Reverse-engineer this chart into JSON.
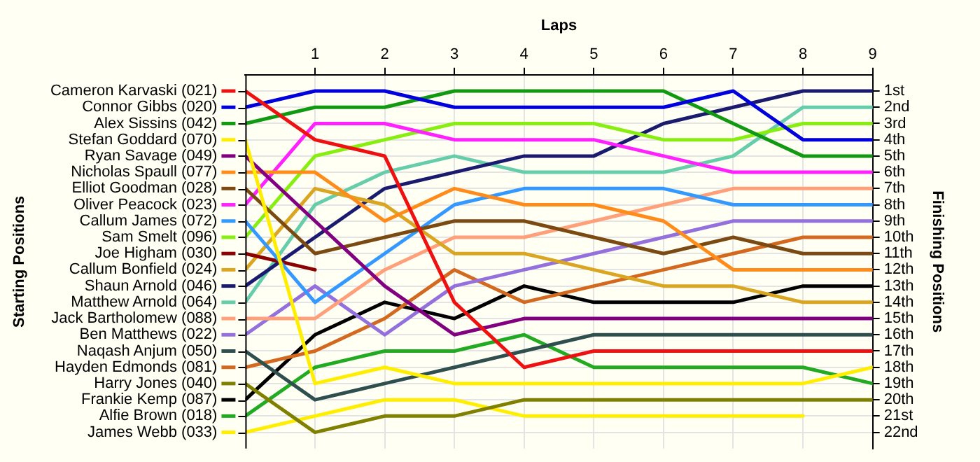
{
  "chart_data": {
    "type": "line",
    "xlabel": "Laps",
    "y2label": "Finishing Positions",
    "annotations": [
      "Starting Positions"
    ],
    "x": [
      0,
      1,
      2,
      3,
      4,
      5,
      6,
      7,
      8,
      9
    ],
    "xlim": [
      0,
      9
    ],
    "xticks": [
      1,
      2,
      3,
      4,
      5,
      6,
      7,
      8,
      9
    ],
    "y2lim": [
      23,
      0
    ],
    "y2ticks": [
      {
        "value": 1,
        "label": "1st"
      },
      {
        "value": 2,
        "label": "2nd"
      },
      {
        "value": 3,
        "label": "3rd"
      },
      {
        "value": 4,
        "label": "4th"
      },
      {
        "value": 5,
        "label": "5th"
      },
      {
        "value": 6,
        "label": "6th"
      },
      {
        "value": 7,
        "label": "7th"
      },
      {
        "value": 8,
        "label": "8th"
      },
      {
        "value": 9,
        "label": "9th"
      },
      {
        "value": 10,
        "label": "10th"
      },
      {
        "value": 11,
        "label": "11th"
      },
      {
        "value": 12,
        "label": "12th"
      },
      {
        "value": 13,
        "label": "13th"
      },
      {
        "value": 14,
        "label": "14th"
      },
      {
        "value": 15,
        "label": "15th"
      },
      {
        "value": 16,
        "label": "16th"
      },
      {
        "value": 17,
        "label": "17th"
      },
      {
        "value": 18,
        "label": "18th"
      },
      {
        "value": 19,
        "label": "19th"
      },
      {
        "value": 20,
        "label": "20th"
      },
      {
        "value": 21,
        "label": "21st"
      },
      {
        "value": 22,
        "label": "22nd"
      }
    ],
    "grid": true,
    "legend": "left",
    "marker": "none",
    "series": [
      {
        "name": "Cameron Karvaski (021)",
        "axis": "y2",
        "color": "#ee1111",
        "values": [
          1,
          4,
          5,
          14,
          18,
          17,
          17,
          17,
          17,
          17
        ]
      },
      {
        "name": "Connor Gibbs (020)",
        "axis": "y2",
        "color": "#0000dd",
        "values": [
          2,
          1,
          1,
          2,
          2,
          2,
          2,
          1,
          4,
          4
        ]
      },
      {
        "name": "Alex Sissins (042)",
        "axis": "y2",
        "color": "#119911",
        "values": [
          3,
          2,
          2,
          1,
          1,
          1,
          1,
          3,
          5,
          5
        ]
      },
      {
        "name": "Stefan Goddard (070)",
        "axis": "y2",
        "color": "#ffee00",
        "values": [
          4,
          19,
          18,
          19,
          19,
          19,
          19,
          19,
          19,
          18
        ]
      },
      {
        "name": "Ryan Savage (049)",
        "axis": "y2",
        "color": "#800080",
        "values": [
          5,
          9,
          13,
          16,
          15,
          15,
          15,
          15,
          15,
          15
        ]
      },
      {
        "name": "Nicholas Spaull (077)",
        "axis": "y2",
        "color": "#ff8c1a",
        "values": [
          6,
          6,
          9,
          7,
          8,
          8,
          9,
          12,
          12,
          12
        ]
      },
      {
        "name": "Elliot Goodman (028)",
        "axis": "y2",
        "color": "#7b4a12",
        "values": [
          7,
          11,
          10,
          9,
          9,
          10,
          11,
          10,
          11,
          11
        ]
      },
      {
        "name": "Oliver Peacock (023)",
        "axis": "y2",
        "color": "#ff22ff",
        "values": [
          8,
          3,
          3,
          4,
          4,
          4,
          5,
          6,
          6,
          6
        ]
      },
      {
        "name": "Callum James (072)",
        "axis": "y2",
        "color": "#3399ff",
        "values": [
          9,
          14,
          11,
          8,
          7,
          7,
          7,
          8,
          8,
          8
        ]
      },
      {
        "name": "Sam Smelt (096)",
        "axis": "y2",
        "color": "#88ee11",
        "values": [
          10,
          5,
          4,
          3,
          3,
          3,
          4,
          4,
          3,
          3
        ]
      },
      {
        "name": "Joe Higham (030)",
        "axis": "y2",
        "color": "#8b0000",
        "values": [
          11,
          12,
          null,
          null,
          null,
          null,
          null,
          null,
          null,
          null
        ]
      },
      {
        "name": "Callum Bonfield (024)",
        "axis": "y2",
        "color": "#daa520",
        "values": [
          12,
          7,
          8,
          11,
          11,
          12,
          13,
          13,
          14,
          14
        ]
      },
      {
        "name": "Shaun Arnold (046)",
        "axis": "y2",
        "color": "#1a1a6e",
        "values": [
          13,
          10,
          7,
          6,
          5,
          5,
          3,
          2,
          1,
          1
        ]
      },
      {
        "name": "Matthew Arnold (064)",
        "axis": "y2",
        "color": "#66cdaa",
        "values": [
          14,
          8,
          6,
          5,
          6,
          6,
          6,
          5,
          2,
          2
        ]
      },
      {
        "name": "Jack Bartholomew (088)",
        "axis": "y2",
        "color": "#ffa07a",
        "values": [
          15,
          15,
          12,
          10,
          10,
          9,
          8,
          7,
          7,
          7
        ]
      },
      {
        "name": "Ben Matthews (022)",
        "axis": "y2",
        "color": "#9370db",
        "values": [
          16,
          13,
          16,
          13,
          12,
          11,
          10,
          9,
          9,
          9
        ]
      },
      {
        "name": "Naqash Anjum (050)",
        "axis": "y2",
        "color": "#2f4f4f",
        "values": [
          17,
          20,
          19,
          18,
          17,
          16,
          16,
          16,
          16,
          16
        ]
      },
      {
        "name": "Hayden Edmonds (081)",
        "axis": "y2",
        "color": "#d2691e",
        "values": [
          18,
          17,
          15,
          12,
          14,
          13,
          12,
          11,
          10,
          10
        ]
      },
      {
        "name": "Harry Jones (040)",
        "axis": "y2",
        "color": "#808000",
        "values": [
          19,
          22,
          21,
          21,
          20,
          20,
          20,
          20,
          20,
          20
        ]
      },
      {
        "name": "Frankie Kemp (087)",
        "axis": "y2",
        "color": "#000000",
        "values": [
          20,
          16,
          14,
          15,
          13,
          14,
          14,
          14,
          13,
          13
        ]
      },
      {
        "name": "Alfie Brown (018)",
        "axis": "y2",
        "color": "#22aa22",
        "values": [
          21,
          18,
          17,
          17,
          16,
          18,
          18,
          18,
          18,
          19
        ]
      },
      {
        "name": "James Webb (033)",
        "axis": "y2",
        "color": "#ffee00",
        "values": [
          22,
          21,
          20,
          20,
          21,
          21,
          21,
          21,
          21,
          null
        ]
      }
    ]
  }
}
